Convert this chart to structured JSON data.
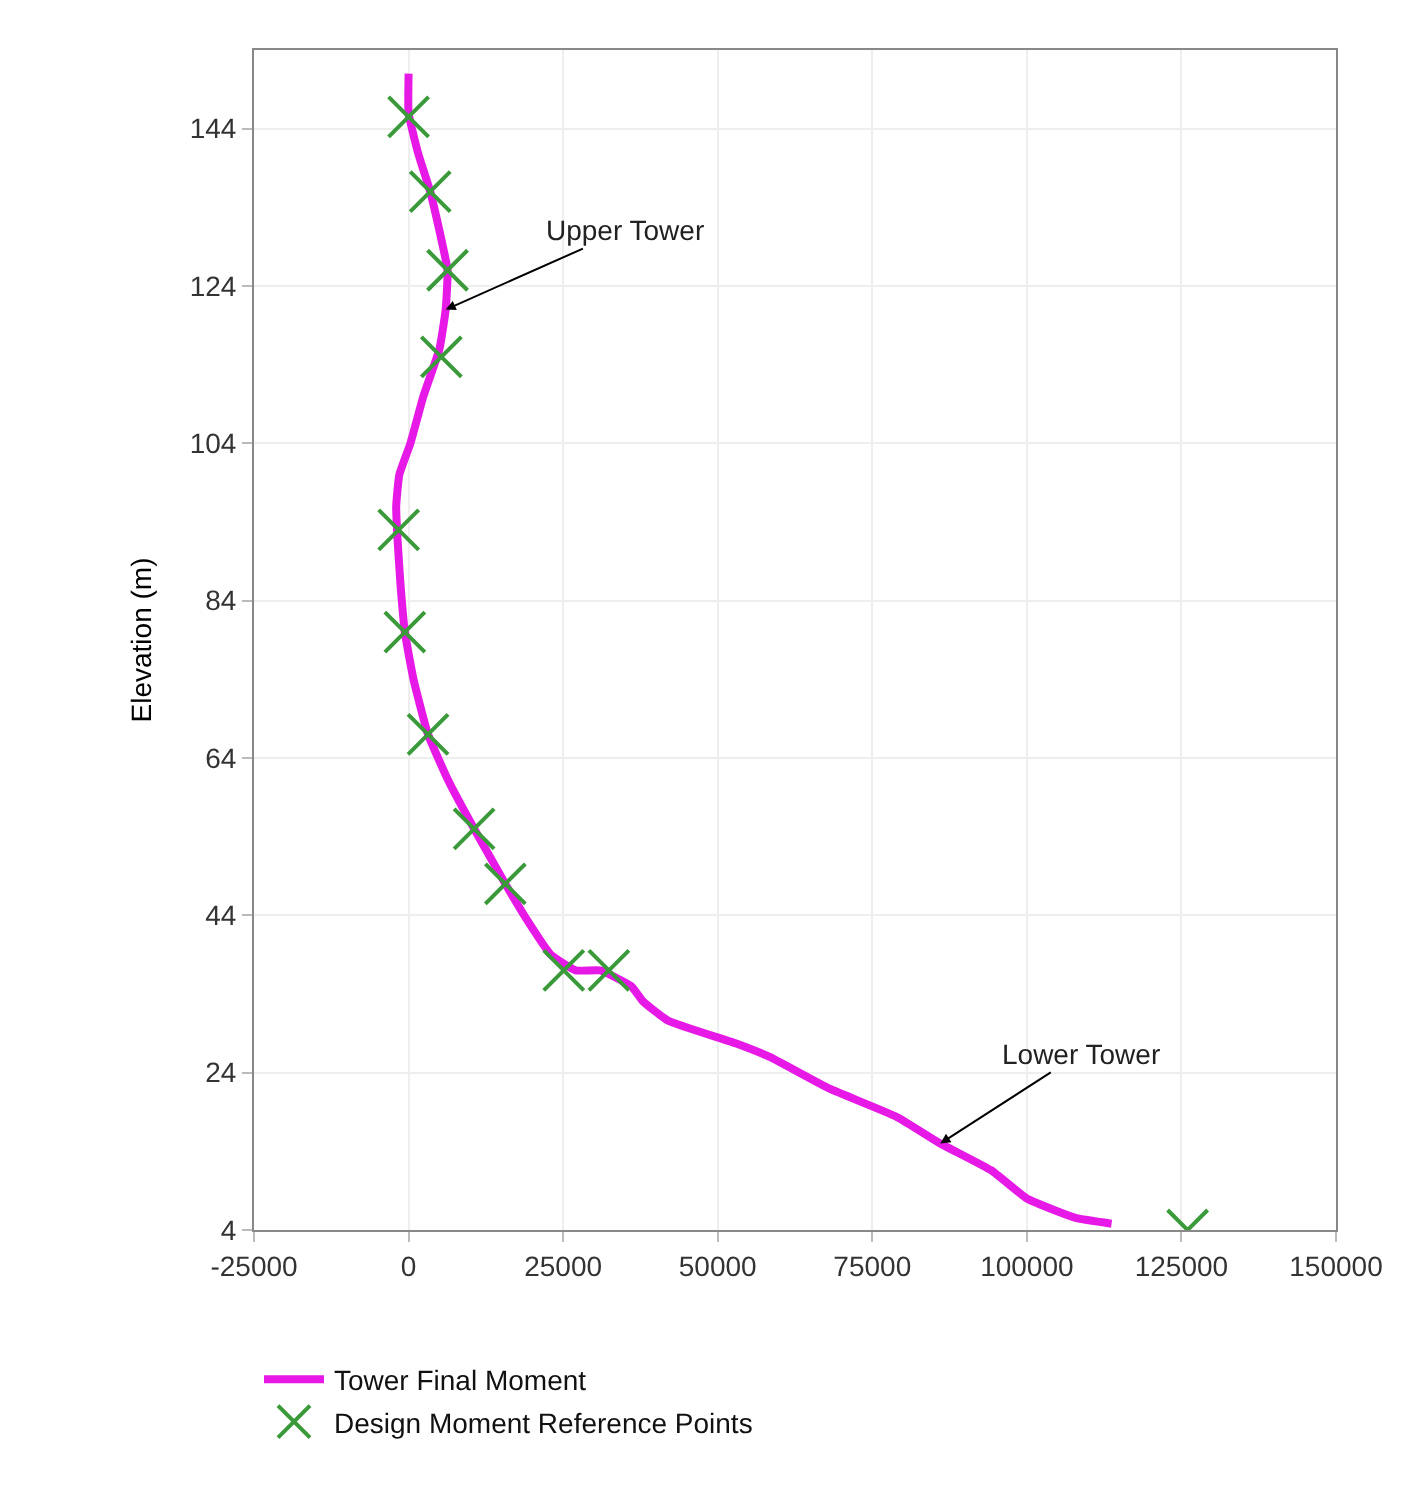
{
  "chart_data": {
    "type": "line",
    "ylabel": "Elevation (m)",
    "xlim": [
      -25000,
      150000
    ],
    "xticks": [
      -25000,
      0,
      25000,
      50000,
      75000,
      100000,
      125000,
      150000
    ],
    "ylim": [
      4,
      154
    ],
    "yticks": [
      4,
      24,
      44,
      64,
      84,
      104,
      124,
      144
    ],
    "grid": true,
    "legend": "bottom",
    "series": [
      {
        "name": "Tower Final Moment",
        "color": "#e619e6",
        "marker": "none",
        "line_style": "solid",
        "x": [
          0,
          0,
          1500,
          3500,
          5000,
          6300,
          6000,
          5000,
          2400,
          300,
          -1500,
          -2000,
          -1800,
          -1300,
          -600,
          800,
          3150,
          6500,
          10600,
          15650,
          19500,
          23000,
          27000,
          31000,
          36000,
          38000,
          42000,
          53000,
          58400,
          68000,
          78900,
          86000,
          94200,
          100000,
          104500,
          108000,
          113700
        ],
        "values": [
          151,
          146,
          141,
          136,
          131,
          126,
          121,
          116,
          110,
          104,
          100,
          96,
          92,
          86,
          80,
          74,
          67,
          61,
          55,
          48,
          43,
          39,
          37,
          37,
          35,
          33,
          30.6,
          27.7,
          26,
          22,
          18.4,
          15,
          11.6,
          8,
          6.5,
          5.5,
          4.8
        ]
      },
      {
        "name": "Design Moment Reference Points",
        "type": "scatter",
        "color": "#3a9a3a",
        "marker": "cross",
        "x": [
          0,
          3500,
          6300,
          5300,
          -1600,
          -600,
          3150,
          10600,
          15650,
          25100,
          32400,
          126000
        ],
        "values": [
          145.5,
          136,
          126,
          115,
          93,
          80,
          67,
          55,
          48,
          37,
          37,
          4
        ]
      }
    ],
    "annotations": [
      {
        "text": "Upper Tower",
        "x": 6000,
        "y": 121
      },
      {
        "text": "Lower Tower",
        "x": 86000,
        "y": 15
      }
    ]
  }
}
